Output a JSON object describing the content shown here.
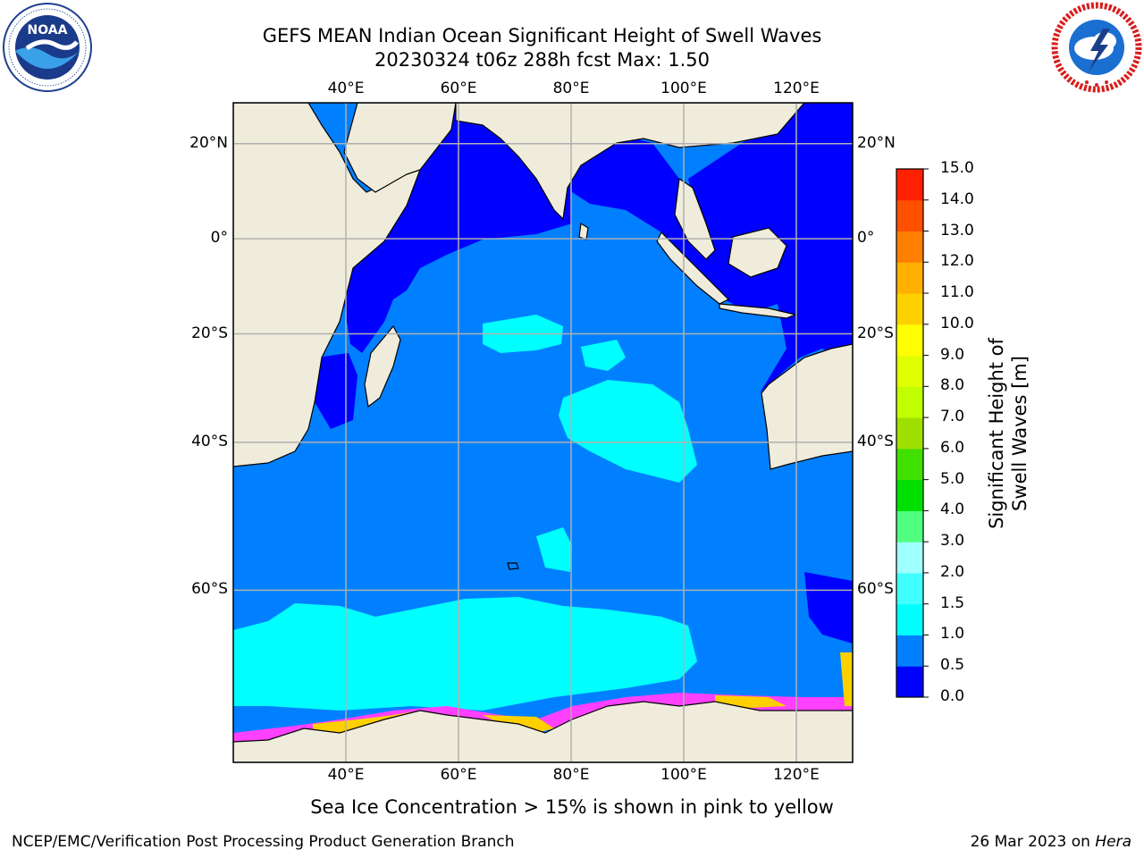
{
  "header": {
    "title_line1": "GEFS MEAN Indian Ocean Significant Height of Swell Waves",
    "title_line2": "20230324 t06z 288h fcst   Max: 1.50"
  },
  "logos": {
    "left": {
      "name": "NOAA",
      "ring_text": "NATIONAL OCEANIC AND ATMOSPHERIC ADMINISTRATION · U.S. DEPARTMENT OF COMMERCE"
    },
    "right": {
      "name": "NATIONAL WEATHER SERVICE"
    }
  },
  "map": {
    "lon_range": [
      20,
      130
    ],
    "lat_range": [
      -74,
      28
    ],
    "lon_ticks": [
      "40°E",
      "60°E",
      "80°E",
      "100°E",
      "120°E"
    ],
    "lat_ticks": [
      "20°N",
      "0°",
      "20°S",
      "40°S",
      "60°S"
    ],
    "lon_values": [
      40,
      60,
      80,
      100,
      120
    ],
    "lat_values": [
      20,
      0,
      -20,
      -40,
      -60
    ],
    "colors": {
      "land": "#efecdc",
      "ocean_base": "#0080ff",
      "low_swell": "#0000ff",
      "mid_swell": "#00ffff",
      "ice_pink": "#ff40ff",
      "ice_yellow": "#ffd000"
    }
  },
  "colorbar": {
    "label": "Significant Height of Swell Waves [m]",
    "levels": [
      "0.0",
      "0.5",
      "1.0",
      "1.5",
      "2.0",
      "3.0",
      "4.0",
      "5.0",
      "6.0",
      "7.0",
      "8.0",
      "9.0",
      "10.0",
      "11.0",
      "12.0",
      "13.0",
      "14.0",
      "15.0"
    ],
    "colors": [
      "#0000ff",
      "#0080ff",
      "#00ffff",
      "#40ffff",
      "#a0ffff",
      "#50ff80",
      "#00e000",
      "#40e000",
      "#a0e000",
      "#c0ff00",
      "#e0ff00",
      "#ffff00",
      "#ffd000",
      "#ffb000",
      "#ff8000",
      "#ff5000",
      "#ff2000"
    ]
  },
  "caption": "Sea Ice Concentration > 15% is shown in pink to yellow",
  "footer": {
    "left": "NCEP/EMC/Verification Post Processing Product Generation Branch",
    "right_prefix": "26 Mar 2023 on ",
    "right_host": "Hera"
  }
}
